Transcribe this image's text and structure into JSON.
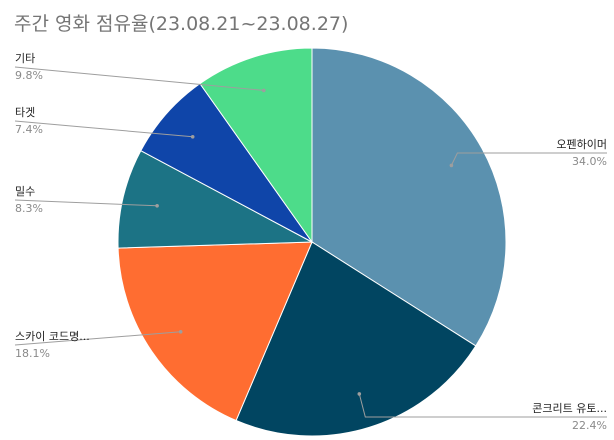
{
  "chart_data": {
    "type": "pie",
    "title": "주간 영화 점유율(23.08.21~23.08.27)",
    "slices": [
      {
        "label": "오펜하이머",
        "value": 34.0,
        "value_label": "34.0%",
        "color": "#5B91AF"
      },
      {
        "label": "콘크리트 유토...",
        "value": 22.4,
        "value_label": "22.4%",
        "color": "#014561"
      },
      {
        "label": "스카이 코드명...",
        "value": 18.1,
        "value_label": "18.1%",
        "color": "#FF6D31"
      },
      {
        "label": "밀수",
        "value": 8.3,
        "value_label": "8.3%",
        "color": "#1C7385"
      },
      {
        "label": "타겟",
        "value": 7.4,
        "value_label": "7.4%",
        "color": "#0F45A9"
      },
      {
        "label": "기타",
        "value": 9.8,
        "value_label": "9.8%",
        "color": "#4DDC8A"
      }
    ],
    "legend": "none",
    "label_style": "leader-lines"
  }
}
